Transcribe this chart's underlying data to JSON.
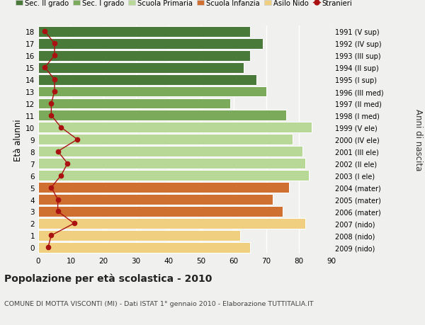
{
  "ages": [
    18,
    17,
    16,
    15,
    14,
    13,
    12,
    11,
    10,
    9,
    8,
    7,
    6,
    5,
    4,
    3,
    2,
    1,
    0
  ],
  "bar_values": [
    65,
    69,
    65,
    63,
    67,
    70,
    59,
    76,
    84,
    78,
    81,
    82,
    83,
    77,
    72,
    75,
    82,
    62,
    65
  ],
  "stranieri_values": [
    2,
    5,
    5,
    2,
    5,
    5,
    4,
    4,
    7,
    12,
    6,
    9,
    7,
    4,
    6,
    6,
    11,
    4,
    3
  ],
  "right_labels": [
    "1991 (V sup)",
    "1992 (IV sup)",
    "1993 (III sup)",
    "1994 (II sup)",
    "1995 (I sup)",
    "1996 (III med)",
    "1997 (II med)",
    "1998 (I med)",
    "1999 (V ele)",
    "2000 (IV ele)",
    "2001 (III ele)",
    "2002 (II ele)",
    "2003 (I ele)",
    "2004 (mater)",
    "2005 (mater)",
    "2006 (mater)",
    "2007 (nido)",
    "2008 (nido)",
    "2009 (nido)"
  ],
  "bar_colors": [
    "#4a7a3a",
    "#4a7a3a",
    "#4a7a3a",
    "#4a7a3a",
    "#4a7a3a",
    "#7aaa5a",
    "#7aaa5a",
    "#7aaa5a",
    "#b8d898",
    "#b8d898",
    "#b8d898",
    "#b8d898",
    "#b8d898",
    "#d07030",
    "#d07030",
    "#d07030",
    "#f0d080",
    "#f0d080",
    "#f0d080"
  ],
  "legend_labels": [
    "Sec. II grado",
    "Sec. I grado",
    "Scuola Primaria",
    "Scuola Infanzia",
    "Asilo Nido",
    "Stranieri"
  ],
  "legend_colors": [
    "#4a7a3a",
    "#7aaa5a",
    "#b8d898",
    "#d07030",
    "#f0d080",
    "#aa1111"
  ],
  "ylabel": "Età alunni",
  "right_ylabel": "Anni di nascita",
  "title": "Popolazione per età scolastica - 2010",
  "subtitle": "COMUNE DI MOTTA VISCONTI (MI) - Dati ISTAT 1° gennaio 2010 - Elaborazione TUTTITALIA.IT",
  "xlim": [
    0,
    90
  ],
  "xticks": [
    0,
    10,
    20,
    30,
    40,
    50,
    60,
    70,
    80,
    90
  ],
  "stranieri_color": "#aa1111",
  "bg_color": "#f0f0ee",
  "grid_color": "#ffffff",
  "bar_height": 0.88
}
